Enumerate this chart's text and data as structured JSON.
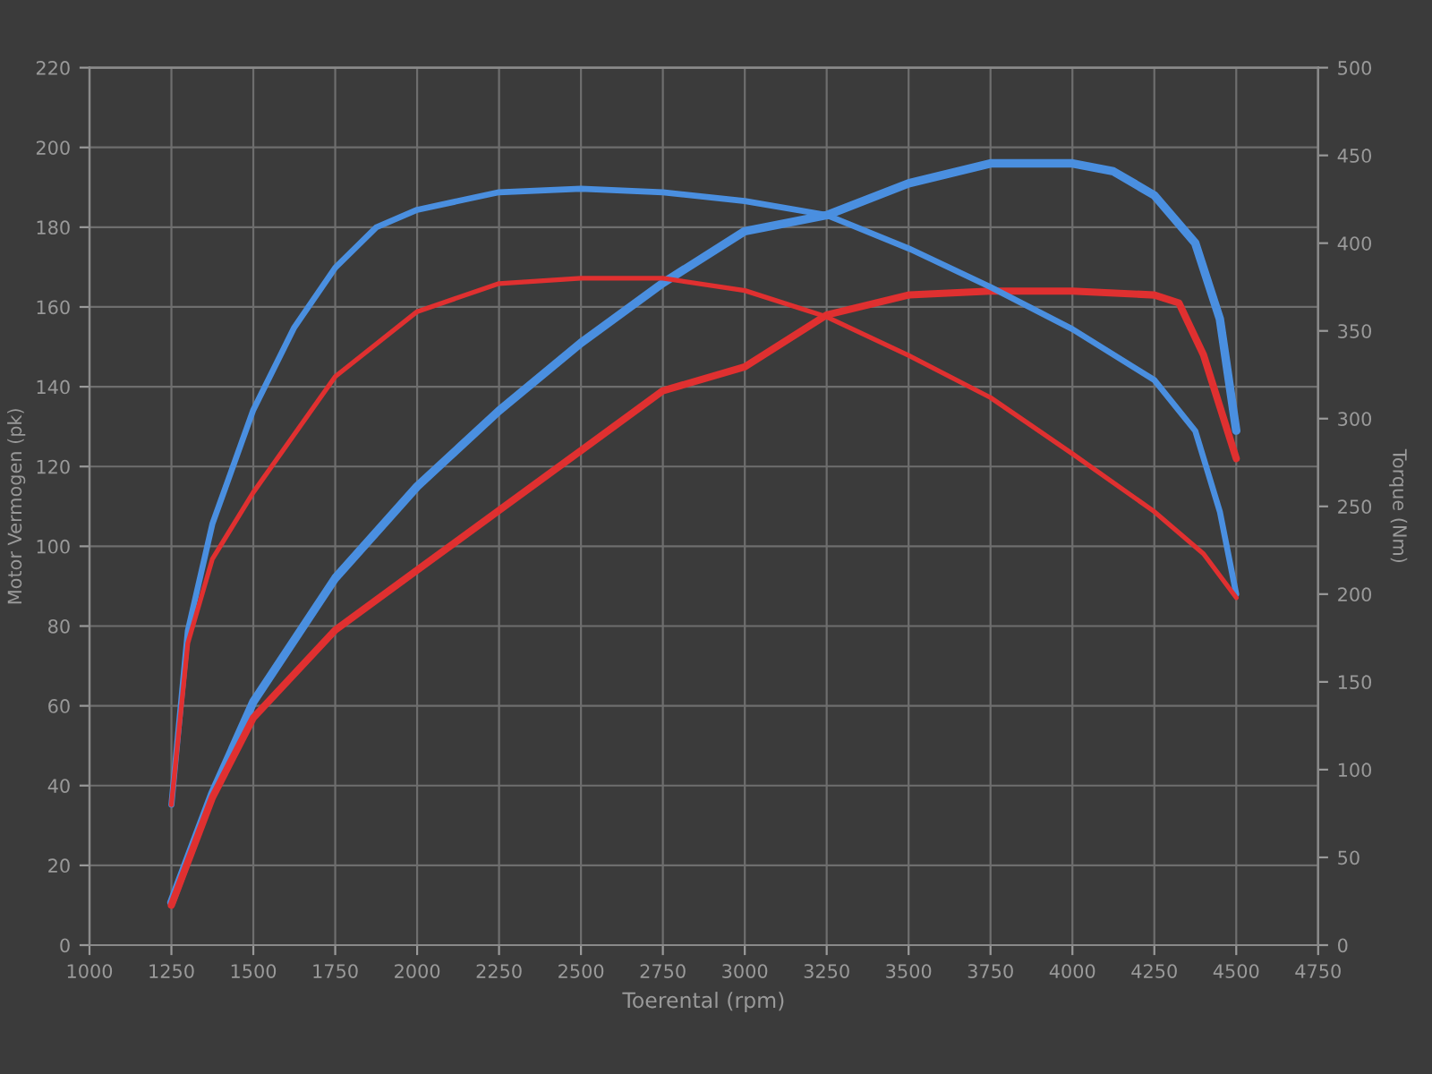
{
  "chart_data": {
    "type": "line",
    "xlabel": "Toerental (rpm)",
    "ylabel": "Motor Vermogen (pk)",
    "y2label": "Torque (Nm)",
    "xlim": [
      1000,
      4750
    ],
    "xticks": [
      1000,
      1250,
      1500,
      1750,
      2000,
      2250,
      2500,
      2750,
      3000,
      3250,
      3500,
      3750,
      4000,
      4250,
      4500,
      4750
    ],
    "ylim": [
      0,
      220
    ],
    "yticks": [
      0,
      20,
      40,
      60,
      80,
      100,
      120,
      140,
      160,
      180,
      200,
      220
    ],
    "y2lim": [
      0,
      500
    ],
    "y2ticks": [
      0,
      50,
      100,
      150,
      200,
      250,
      300,
      350,
      400,
      450,
      500
    ],
    "grid": true,
    "line_style": "solid",
    "marker": "none",
    "series": [
      {
        "color": "#4a8fe0",
        "x": [
          1250,
          1375,
          1500,
          1750,
          2000,
          2250,
          2500,
          2750,
          3000,
          3250,
          3500,
          3750,
          4000,
          4125,
          4250,
          4375,
          4450,
          4500
        ],
        "values": [
          10.7,
          38,
          61,
          92,
          115,
          134,
          151,
          166,
          179,
          183,
          191,
          196,
          196,
          194,
          188,
          176,
          157,
          129
        ]
      },
      {
        "color": "#e03030",
        "x": [
          1250,
          1375,
          1500,
          1750,
          2000,
          2250,
          2500,
          2750,
          3000,
          3250,
          3500,
          3750,
          4000,
          4250,
          4325,
          4400,
          4500
        ],
        "values": [
          10,
          37,
          57,
          79,
          94,
          109,
          124,
          139,
          145,
          158,
          163,
          164,
          164,
          163,
          161,
          148,
          122
        ]
      },
      {
        "color": "#4a8fe0",
        "axis": "y2",
        "x": [
          1250,
          1300,
          1375,
          1500,
          1625,
          1750,
          1875,
          2000,
          2250,
          2500,
          2750,
          3000,
          3250,
          3500,
          3750,
          4000,
          4250,
          4375,
          4450,
          4500
        ],
        "values": [
          80,
          179,
          240,
          305,
          352,
          386,
          409,
          419,
          429,
          431,
          429,
          424,
          416,
          397,
          375,
          351,
          322,
          293,
          247,
          200
        ]
      },
      {
        "color": "#e03030",
        "axis": "y2",
        "x": [
          1250,
          1300,
          1375,
          1500,
          1750,
          2000,
          2250,
          2500,
          2750,
          3000,
          3250,
          3500,
          3750,
          4000,
          4250,
          4400,
          4500
        ],
        "values": [
          80,
          172,
          220,
          258,
          324,
          361,
          377,
          380,
          380,
          373,
          358,
          336,
          312,
          280,
          247,
          223,
          198
        ]
      }
    ]
  }
}
